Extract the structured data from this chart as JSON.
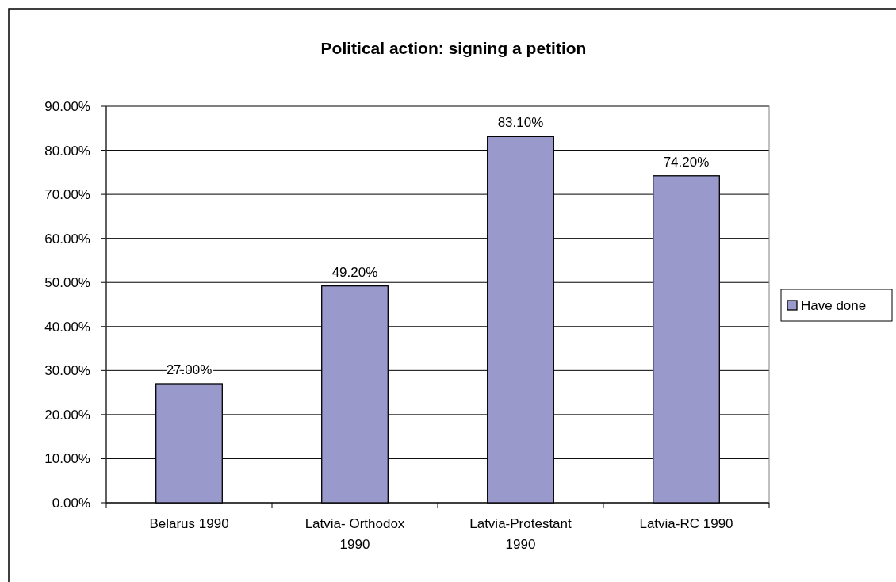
{
  "chart_data": {
    "type": "bar",
    "title": "Political action: signing a petition",
    "categories": [
      "Belarus 1990",
      "Latvia- Orthodox 1990",
      "Latvia-Protestant 1990",
      "Latvia-RC 1990"
    ],
    "series": [
      {
        "name": "Have done",
        "color": "#9999cc",
        "values": [
          27.0,
          49.2,
          83.1,
          74.2
        ],
        "value_labels": [
          "27.00%",
          "49.20%",
          "83.10%",
          "74.20%"
        ]
      }
    ],
    "ylim": [
      0,
      90
    ],
    "yticks": [
      {
        "value": 0,
        "label": "0.00%"
      },
      {
        "value": 10,
        "label": "10.00%"
      },
      {
        "value": 20,
        "label": "20.00%"
      },
      {
        "value": 30,
        "label": "30.00%"
      },
      {
        "value": 40,
        "label": "40.00%"
      },
      {
        "value": 50,
        "label": "50.00%"
      },
      {
        "value": 60,
        "label": "60.00%"
      },
      {
        "value": 70,
        "label": "70.00%"
      },
      {
        "value": 80,
        "label": "80.00%"
      },
      {
        "value": 90,
        "label": "90.00%"
      }
    ],
    "grid": "y",
    "legend": "right"
  }
}
